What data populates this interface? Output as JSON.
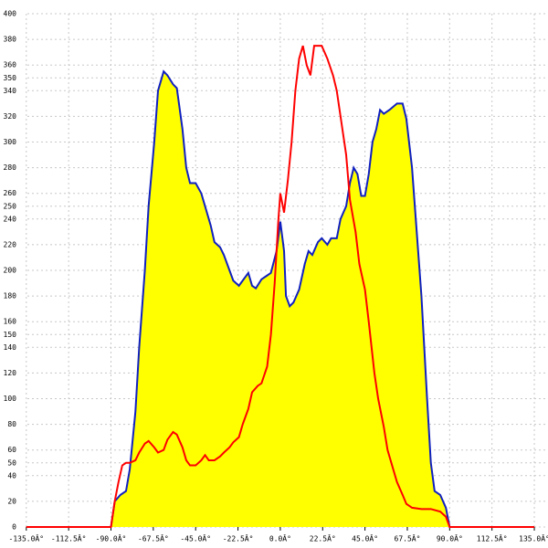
{
  "chart_data": {
    "type": "area_line",
    "xlim": [
      -141.7,
      141.3
    ],
    "ylim": [
      0,
      400
    ],
    "xticks": [
      {
        "value": -135,
        "label": "-135.0Â°"
      },
      {
        "value": -112.5,
        "label": "-112.5Â°"
      },
      {
        "value": -90,
        "label": "-90.0Â°"
      },
      {
        "value": -67.5,
        "label": "-67.5Â°"
      },
      {
        "value": -45,
        "label": "-45.0Â°"
      },
      {
        "value": -22.5,
        "label": "-22.5Â°"
      },
      {
        "value": 0,
        "label": "0.0Â°"
      },
      {
        "value": 22.5,
        "label": "22.5Â°"
      },
      {
        "value": 45,
        "label": "45.0Â°"
      },
      {
        "value": 67.5,
        "label": "67.5Â°"
      },
      {
        "value": 90,
        "label": "90.0Â°"
      },
      {
        "value": 112.5,
        "label": "112.5Â°"
      },
      {
        "value": 135,
        "label": "135.0Â°"
      }
    ],
    "yticks": [
      0,
      20,
      40,
      50,
      60,
      80,
      100,
      120,
      140,
      150,
      160,
      180,
      200,
      220,
      240,
      250,
      260,
      280,
      300,
      320,
      340,
      350,
      360,
      380,
      400
    ],
    "grid": true,
    "series": [
      {
        "kind": "area",
        "color": "#1020c0",
        "fill": "#ffff00",
        "x": [
          -90,
          -88,
          -85,
          -82,
          -80,
          -77,
          -75,
          -72,
          -70,
          -67,
          -65,
          -62,
          -60,
          -57,
          -55,
          -52,
          -50,
          -48,
          -45,
          -42,
          -40,
          -37,
          -35,
          -32,
          -30,
          -27,
          -25,
          -22,
          -20,
          -17,
          -15,
          -13,
          -10,
          -7,
          -5,
          -2,
          0,
          2,
          3,
          5,
          7,
          10,
          13,
          15,
          17,
          20,
          22,
          25,
          27,
          30,
          32,
          35,
          37,
          39,
          41,
          43,
          45,
          47,
          49,
          51,
          53,
          55,
          58,
          62,
          65,
          67,
          70,
          72,
          75,
          78,
          80,
          82,
          85,
          88,
          90
        ],
        "values": [
          0,
          20,
          25,
          28,
          45,
          90,
          140,
          200,
          250,
          300,
          340,
          355,
          352,
          345,
          342,
          310,
          280,
          268,
          268,
          260,
          250,
          235,
          222,
          218,
          212,
          200,
          192,
          188,
          192,
          198,
          188,
          186,
          193,
          196,
          198,
          215,
          238,
          215,
          180,
          172,
          175,
          185,
          205,
          215,
          212,
          222,
          225,
          220,
          225,
          225,
          240,
          250,
          268,
          280,
          275,
          258,
          258,
          275,
          300,
          310,
          325,
          322,
          325,
          330,
          330,
          318,
          280,
          240,
          180,
          100,
          50,
          28,
          25,
          15,
          0
        ]
      },
      {
        "kind": "line",
        "color": "#ff0000",
        "x": [
          -135,
          -90,
          -88,
          -86,
          -84,
          -82,
          -80,
          -77,
          -75,
          -72,
          -70,
          -67,
          -65,
          -62,
          -60,
          -57,
          -55,
          -52,
          -50,
          -48,
          -45,
          -42,
          -40,
          -38,
          -35,
          -32,
          -30,
          -27,
          -25,
          -22,
          -20,
          -17,
          -15,
          -12,
          -10,
          -7,
          -5,
          -3,
          -1,
          0,
          2,
          4,
          6,
          8,
          10,
          12,
          14,
          16,
          18,
          20,
          22,
          25,
          28,
          30,
          32,
          35,
          37,
          40,
          42,
          45,
          47,
          50,
          52,
          55,
          57,
          60,
          62,
          65,
          67,
          70,
          75,
          80,
          85,
          88,
          90,
          135
        ],
        "values": [
          0,
          0,
          20,
          35,
          48,
          50,
          50,
          52,
          58,
          65,
          67,
          62,
          58,
          60,
          68,
          74,
          72,
          62,
          52,
          48,
          48,
          52,
          56,
          52,
          52,
          55,
          58,
          62,
          66,
          70,
          80,
          92,
          105,
          110,
          112,
          125,
          150,
          190,
          240,
          260,
          245,
          270,
          300,
          340,
          365,
          375,
          360,
          352,
          375,
          375,
          375,
          365,
          352,
          340,
          320,
          290,
          255,
          230,
          205,
          185,
          160,
          120,
          100,
          78,
          60,
          45,
          35,
          25,
          18,
          15,
          14,
          14,
          12,
          8,
          0,
          0
        ]
      }
    ]
  }
}
